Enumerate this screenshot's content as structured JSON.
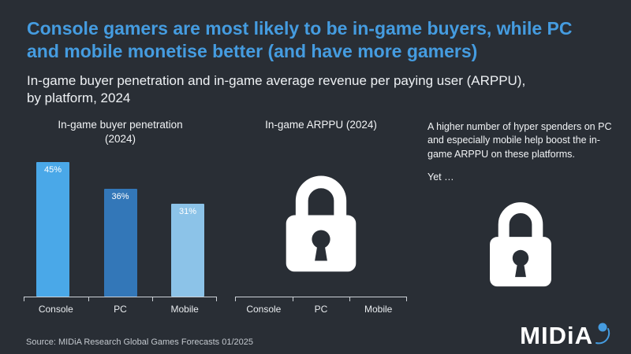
{
  "page": {
    "background": "#292e35",
    "accent_blue": "#459ce0",
    "text_white": "#f2f4f6"
  },
  "header": {
    "title": "Console gamers are most likely to be in-game buyers, while PC and mobile monetise better (and have more gamers)",
    "subtitle": "In-game buyer penetration and in-game average revenue per paying user (ARPPU), by platform, 2024"
  },
  "chart_data": [
    {
      "type": "bar",
      "title": "In-game buyer penetration (2024)",
      "categories": [
        "Console",
        "PC",
        "Mobile"
      ],
      "values": [
        45,
        36,
        31
      ],
      "value_labels": [
        "45%",
        "36%",
        "31%"
      ],
      "bar_colors": [
        "#4aa8e8",
        "#3377b8",
        "#8cc3e8"
      ],
      "xlabel": "",
      "ylabel": "",
      "ylim": [
        0,
        48
      ],
      "grid": false,
      "legend": false
    },
    {
      "type": "locked",
      "title": "In-game ARPPU (2024)",
      "categories": [
        "Console",
        "PC",
        "Mobile"
      ],
      "icon": "padlock-icon"
    }
  ],
  "annotation": {
    "text": "A higher number of hyper spenders on PC and especially mobile help boost the in-game ARPPU on these platforms.",
    "text2": "Yet …",
    "icon": "padlock-icon"
  },
  "footer": {
    "source": "Source: MIDiA Research Global Games Forecasts 01/2025",
    "logo_text": "MIDiA"
  }
}
